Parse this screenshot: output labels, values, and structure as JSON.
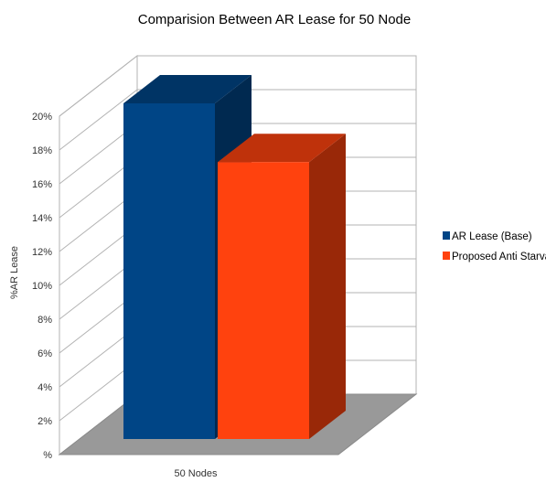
{
  "chart_data": {
    "type": "bar",
    "title": "Comparision Between AR Lease for 50 Node",
    "xlabel": "",
    "ylabel": "%AR Lease",
    "categories": [
      "50 Nodes"
    ],
    "series": [
      {
        "name": "AR  Lease (Base)",
        "values": [
          20
        ],
        "color": "#004586"
      },
      {
        "name": "Proposed Anti Starvation",
        "values": [
          16.5
        ],
        "color": "#ff420e"
      }
    ],
    "ylim": [
      0,
      20
    ],
    "yticks": [
      "%",
      "2%",
      "4%",
      "6%",
      "8%",
      "10%",
      "12%",
      "14%",
      "16%",
      "18%",
      "20%"
    ],
    "grid": true,
    "three_d": true,
    "legend_position": "right"
  }
}
